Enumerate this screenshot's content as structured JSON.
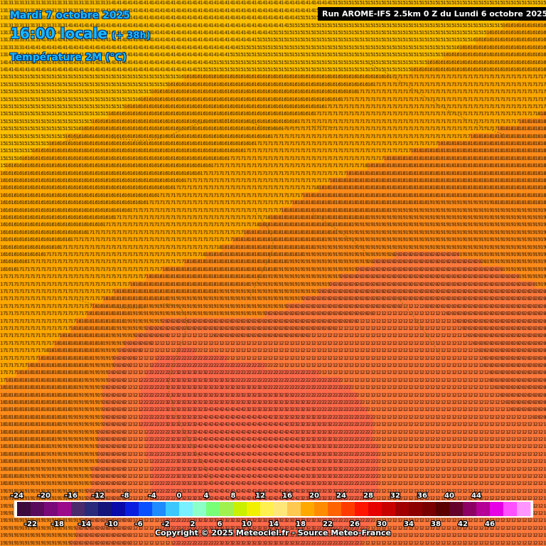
{
  "header": {
    "date": "Mardi 7 octobre 2025",
    "time": "16:00 locale",
    "step": "(+ 38h)",
    "parameter": "Température 2M (°C)"
  },
  "run_label": "Run AROME-IFS 2.5km 0 Z du Lundi 6 octobre 2025",
  "copyright": "Copyright © 2025 Meteociel.fr - Source Meteo-France",
  "legend": {
    "top_labels": [
      "-24",
      "-20",
      "-16",
      "-12",
      "-8",
      "-4",
      "0",
      "4",
      "8",
      "12",
      "16",
      "20",
      "24",
      "28",
      "32",
      "36",
      "40",
      "44"
    ],
    "bottom_labels": [
      "-22",
      "-18",
      "-14",
      "-10",
      "-6",
      "-2",
      "2",
      "6",
      "10",
      "14",
      "18",
      "22",
      "26",
      "30",
      "34",
      "38",
      "42",
      "46"
    ],
    "colors": [
      "#3c0a3c",
      "#5a0a5a",
      "#7a0a7a",
      "#9a0a8a",
      "#4a2a6a",
      "#2a2a7a",
      "#14147a",
      "#0a0aa8",
      "#0a1ee0",
      "#0a50ff",
      "#1e8cff",
      "#3cc8ff",
      "#78f0ff",
      "#8cffc8",
      "#78ff78",
      "#a0f050",
      "#c8f000",
      "#f0f000",
      "#fff050",
      "#ffe678",
      "#ffc850",
      "#ffa800",
      "#ff8c00",
      "#ff6400",
      "#ff3c00",
      "#ff1400",
      "#e60000",
      "#c80000",
      "#a00000",
      "#8c0000",
      "#780000",
      "#5a0000",
      "#64002a",
      "#8c0064",
      "#b40096",
      "#e600e6",
      "#ff50ff",
      "#ff96ff"
    ]
  },
  "map": {
    "grid_note": "temperature values in °C at grid points",
    "coastline_color": "#8a6a00",
    "background_color": "#f5a800"
  }
}
